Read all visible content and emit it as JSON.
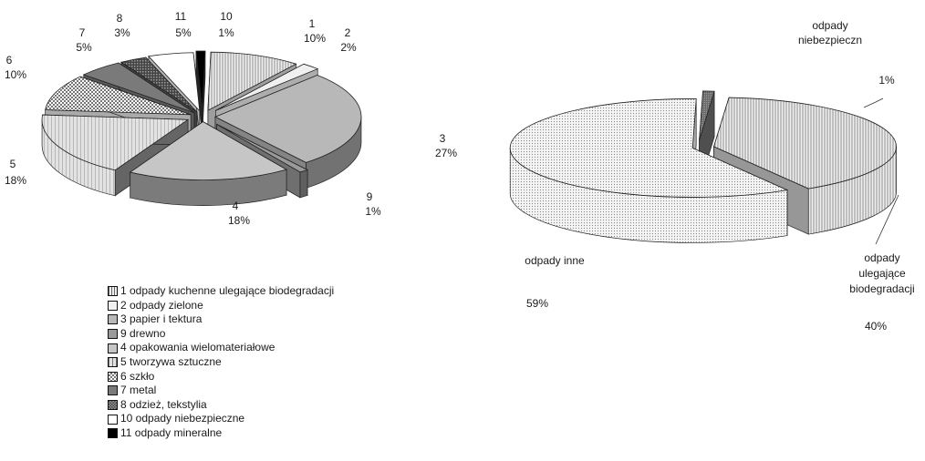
{
  "chart_data": [
    {
      "type": "pie",
      "categories": [
        "1",
        "2",
        "3",
        "9",
        "4",
        "5",
        "6",
        "7",
        "8",
        "11",
        "10"
      ],
      "values": [
        10,
        2,
        27,
        1,
        18,
        18,
        10,
        5,
        3,
        5,
        1
      ],
      "value_labels": [
        "10%",
        "2%",
        "27%",
        "1%",
        "18%",
        "18%",
        "10%",
        "5%",
        "3%",
        "5%",
        "1%"
      ],
      "exploded": true,
      "three_d": true,
      "legend": {
        "placement": "bottom",
        "entries": [
          {
            "label": "1 odpady kuchenne ulegające biodegradacji",
            "fill": "#dcdcdc"
          },
          {
            "label": "2 odpady zielone",
            "fill": "#f0f0f0"
          },
          {
            "label": "3 papier i tektura",
            "fill": "#b8b8b8"
          },
          {
            "label": "9 drewno",
            "fill": "#9a9a9a"
          },
          {
            "label": "4 opakowania wielomateriałowe",
            "fill": "#c6c6c6"
          },
          {
            "label": "5 tworzywa sztuczne",
            "fill": "#8c8c8c"
          },
          {
            "label": "6 szkło",
            "fill": "#ececec"
          },
          {
            "label": "7 metal",
            "fill": "#7a7a7a"
          },
          {
            "label": "8 odzież, tekstylia",
            "fill": "#5a5a5a"
          },
          {
            "label": "10 odpady niebezpieczne",
            "fill": "#ffffff"
          },
          {
            "label": "11 odpady mineralne",
            "fill": "#000000"
          }
        ]
      },
      "colors": [
        "#dcdcdc",
        "#f0f0f0",
        "#b8b8b8",
        "#9a9a9a",
        "#c6c6c6",
        "#8c8c8c",
        "#ececec",
        "#7a7a7a",
        "#5a5a5a",
        "#ffffff",
        "#000000"
      ]
    },
    {
      "type": "pie",
      "categories": [
        "odpady niebezpieczn",
        "odpady ulegające biodegradacji",
        "odpady inne"
      ],
      "values": [
        1,
        40,
        59
      ],
      "value_labels": [
        "1%",
        "40%",
        "59%"
      ],
      "exploded": true,
      "three_d": true,
      "colors": [
        "#6e6e6e",
        "#d2d2d2",
        "#f2f2f2"
      ]
    }
  ]
}
